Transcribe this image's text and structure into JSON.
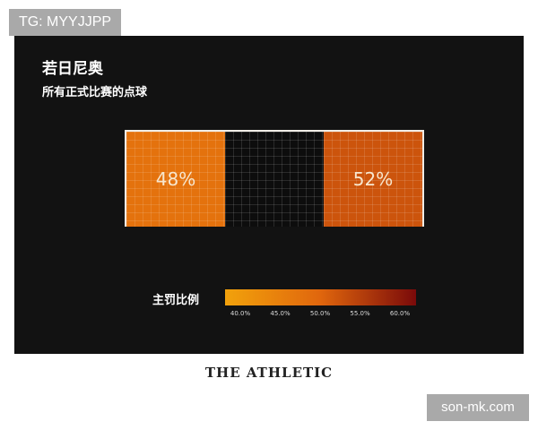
{
  "watermark_top": "TG: MYYJJPP",
  "watermark_bottom": "son-mk.com",
  "brand": "THE ATHLETIC",
  "chart_data": {
    "type": "heatmap",
    "title": "若日尼奥",
    "subtitle": "所有正式比赛的点球",
    "zones": [
      {
        "position": "left",
        "value": 48,
        "label": "48%"
      },
      {
        "position": "center",
        "value": null,
        "label": ""
      },
      {
        "position": "right",
        "value": 52,
        "label": "52%"
      }
    ],
    "legend": {
      "label": "主罚比例",
      "range": [
        40,
        60
      ],
      "ticks": [
        "40.0%",
        "45.0%",
        "50.0%",
        "55.0%",
        "60.0%"
      ],
      "colors": [
        "#f2a20c",
        "#e0660d",
        "#7a0a0a"
      ]
    },
    "empty_zone_color": "#0d0d0d"
  }
}
